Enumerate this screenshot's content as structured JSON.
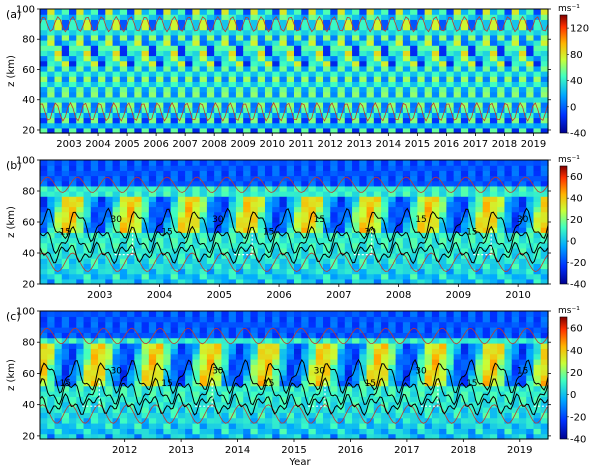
{
  "figure": {
    "xlabel": "Year"
  },
  "colors": {
    "contour_red": "#c0392b",
    "contour_black": "#000000",
    "dashed_white": "#ffffff"
  },
  "chart_data": [
    {
      "type": "heatmap",
      "panel_label": "(a)",
      "ylabel": "z (km)",
      "ylim": [
        18,
        100
      ],
      "yticks": [
        20,
        40,
        60,
        80,
        100
      ],
      "xlim": [
        2002.5,
        2020.0
      ],
      "xtick_labels": [
        "2003",
        "2004",
        "2005",
        "2006",
        "2007",
        "2008",
        "2009",
        "2010",
        "2011",
        "2012",
        "2013",
        "2014",
        "2015",
        "2016",
        "2017",
        "2018",
        "2019"
      ],
      "colorbar": {
        "unit": "ms⁻¹",
        "range": [
          -40,
          140
        ],
        "ticks": [
          -40,
          0,
          40,
          80,
          120
        ]
      }
    },
    {
      "type": "heatmap",
      "panel_label": "(b)",
      "ylabel": "z (km)",
      "ylim": [
        20,
        100
      ],
      "yticks": [
        20,
        40,
        60,
        80,
        100
      ],
      "xlim": [
        2002.5,
        2011.0
      ],
      "xtick_labels": [
        "2003",
        "2004",
        "2005",
        "2006",
        "2007",
        "2008",
        "2009",
        "2010"
      ],
      "colorbar": {
        "unit": "ms⁻¹",
        "range": [
          -40,
          70
        ],
        "ticks": [
          -40,
          -20,
          0,
          20,
          40,
          60
        ]
      },
      "contour_labels": [
        "15",
        "30",
        "15",
        "30",
        "15",
        "15",
        "30",
        "15",
        "15",
        "30"
      ]
    },
    {
      "type": "heatmap",
      "panel_label": "(c)",
      "ylabel": "z (km)",
      "ylim": [
        18,
        100
      ],
      "yticks": [
        20,
        40,
        60,
        80,
        100
      ],
      "xlim": [
        2011.0,
        2020.0
      ],
      "xtick_labels": [
        "2012",
        "2013",
        "2014",
        "2015",
        "2016",
        "2017",
        "2018",
        "2019"
      ],
      "colorbar": {
        "unit": "ms⁻¹",
        "range": [
          -40,
          70
        ],
        "ticks": [
          -40,
          -20,
          0,
          20,
          40,
          60
        ]
      },
      "contour_labels": [
        "15",
        "30",
        "15",
        "30",
        "15",
        "30",
        "15",
        "30",
        "15",
        "15"
      ]
    }
  ]
}
